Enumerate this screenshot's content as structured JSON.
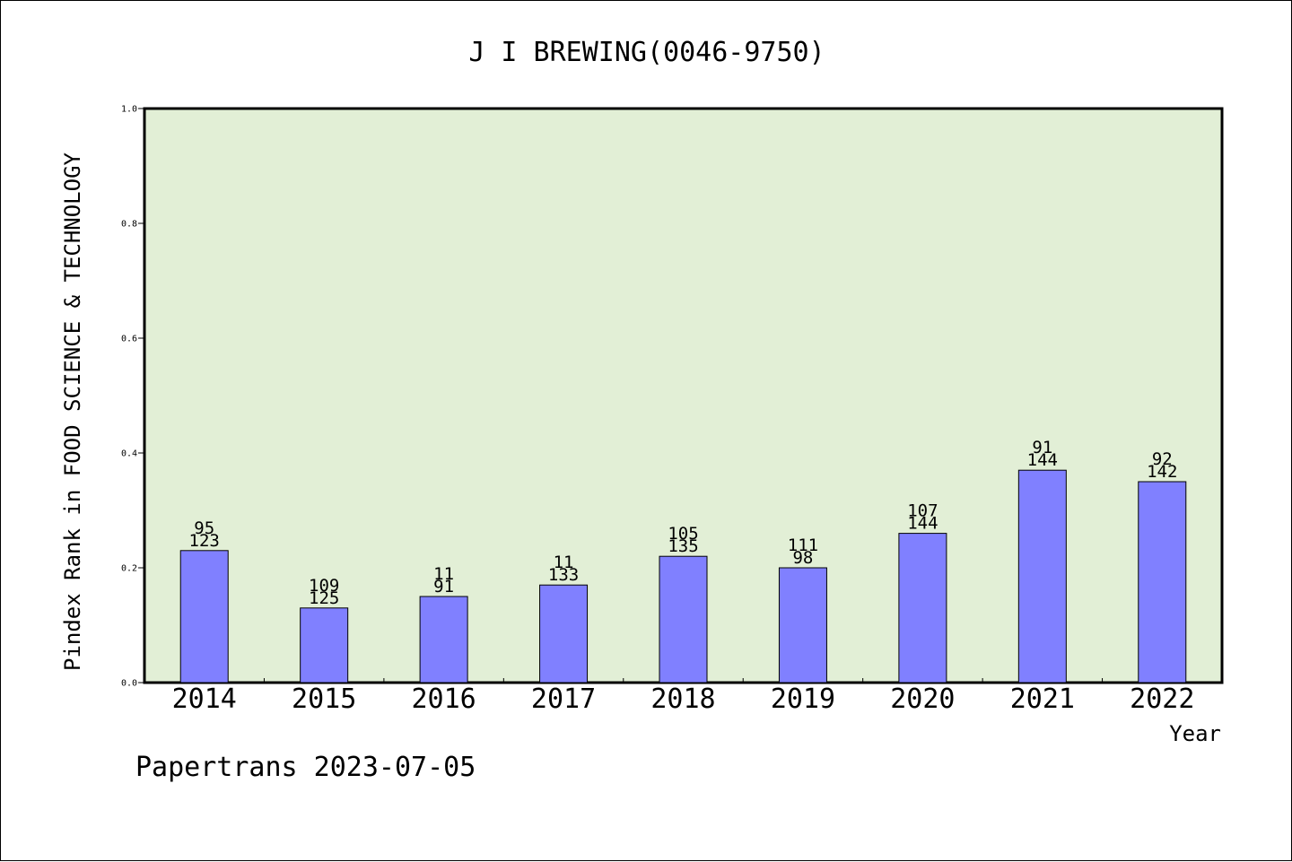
{
  "chart_data": {
    "type": "bar",
    "title": "J I BREWING(0046-9750)",
    "xlabel": "Year",
    "ylabel": "Pindex Rank in FOOD SCIENCE & TECHNOLOGY",
    "ylim": [
      0,
      1.0
    ],
    "yticks": [
      "0.0",
      "0.2",
      "0.4",
      "0.6",
      "0.8",
      "1.0"
    ],
    "grid": false,
    "categories": [
      "2014",
      "2015",
      "2016",
      "2017",
      "2018",
      "2019",
      "2020",
      "2021",
      "2022"
    ],
    "values": [
      0.23,
      0.13,
      0.15,
      0.17,
      0.22,
      0.2,
      0.26,
      0.37,
      0.35
    ],
    "label_top": [
      "95",
      "109",
      "11",
      "11",
      "105",
      "111",
      "107",
      "91",
      "92"
    ],
    "label_bottom": [
      "123",
      "125",
      "91",
      "133",
      "135",
      "98",
      "144",
      "144",
      "142"
    ],
    "colors": {
      "plot_background": "#e2efd6",
      "bar_fill": "#8080ff",
      "bar_stroke": "#000000"
    }
  },
  "footer": "Papertrans 2023-07-05"
}
